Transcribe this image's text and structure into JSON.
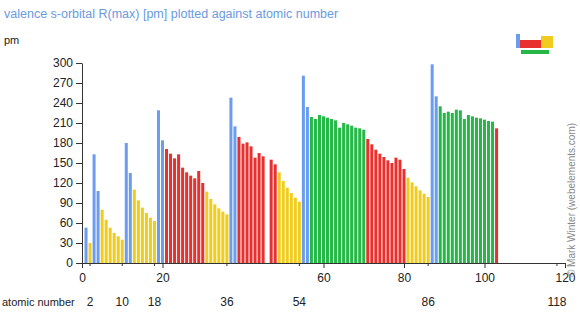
{
  "chart_data": {
    "type": "bar",
    "title": "valence s-orbital R(max) [pm] plotted against atomic number",
    "y_label": "pm",
    "x_label": "atomic number",
    "x": [
      1,
      2,
      3,
      4,
      5,
      6,
      7,
      8,
      9,
      10,
      11,
      12,
      13,
      14,
      15,
      16,
      17,
      18,
      19,
      20,
      21,
      22,
      23,
      24,
      25,
      26,
      27,
      28,
      29,
      30,
      31,
      32,
      33,
      34,
      35,
      36,
      37,
      38,
      39,
      40,
      41,
      42,
      43,
      44,
      45,
      46,
      47,
      48,
      49,
      50,
      51,
      52,
      53,
      54,
      55,
      56,
      57,
      58,
      59,
      60,
      61,
      62,
      63,
      64,
      65,
      66,
      67,
      68,
      69,
      70,
      71,
      72,
      73,
      74,
      75,
      76,
      77,
      78,
      79,
      80,
      81,
      82,
      83,
      84,
      85,
      86,
      87,
      88,
      89,
      90,
      91,
      92,
      93,
      94,
      95,
      96,
      97,
      98,
      99,
      100,
      101,
      102,
      103
    ],
    "values": [
      53,
      30,
      163,
      108,
      80,
      65,
      53,
      45,
      40,
      35,
      180,
      135,
      110,
      94,
      83,
      75,
      68,
      63,
      229,
      184,
      171,
      164,
      157,
      163,
      143,
      136,
      131,
      127,
      138,
      120,
      107,
      96,
      88,
      82,
      77,
      73,
      248,
      205,
      189,
      179,
      181,
      175,
      158,
      165,
      160,
      null,
      155,
      148,
      136,
      123,
      113,
      105,
      98,
      92,
      281,
      234,
      219,
      216,
      222,
      220,
      218,
      216,
      214,
      203,
      210,
      208,
      206,
      203,
      202,
      200,
      186,
      178,
      170,
      164,
      159,
      154,
      150,
      158,
      155,
      141,
      128,
      121,
      115,
      109,
      104,
      99,
      298,
      250,
      235,
      225,
      227,
      225,
      230,
      229,
      216,
      222,
      220,
      218,
      217,
      215,
      213,
      212,
      202
    ],
    "colors": [
      "#6b9cf0",
      "#f0cc1f",
      "#6b9cf0",
      "#6b9cf0",
      "#f0cc1f",
      "#f0cc1f",
      "#f0cc1f",
      "#f0cc1f",
      "#f0cc1f",
      "#f0cc1f",
      "#6b9cf0",
      "#6b9cf0",
      "#f0cc1f",
      "#f0cc1f",
      "#f0cc1f",
      "#f0cc1f",
      "#f0cc1f",
      "#f0cc1f",
      "#6b9cf0",
      "#6b9cf0",
      "#e8312e",
      "#e8312e",
      "#e8312e",
      "#e8312e",
      "#e8312e",
      "#e8312e",
      "#e8312e",
      "#e8312e",
      "#e8312e",
      "#e8312e",
      "#f0cc1f",
      "#f0cc1f",
      "#f0cc1f",
      "#f0cc1f",
      "#f0cc1f",
      "#f0cc1f",
      "#6b9cf0",
      "#6b9cf0",
      "#e8312e",
      "#e8312e",
      "#e8312e",
      "#e8312e",
      "#e8312e",
      "#e8312e",
      "#e8312e",
      "#e8312e",
      "#e8312e",
      "#e8312e",
      "#f0cc1f",
      "#f0cc1f",
      "#f0cc1f",
      "#f0cc1f",
      "#f0cc1f",
      "#f0cc1f",
      "#6b9cf0",
      "#6b9cf0",
      "#26b847",
      "#26b847",
      "#26b847",
      "#26b847",
      "#26b847",
      "#26b847",
      "#26b847",
      "#26b847",
      "#26b847",
      "#26b847",
      "#26b847",
      "#26b847",
      "#26b847",
      "#26b847",
      "#e8312e",
      "#e8312e",
      "#e8312e",
      "#e8312e",
      "#e8312e",
      "#e8312e",
      "#e8312e",
      "#e8312e",
      "#e8312e",
      "#e8312e",
      "#f0cc1f",
      "#f0cc1f",
      "#f0cc1f",
      "#f0cc1f",
      "#f0cc1f",
      "#f0cc1f",
      "#6b9cf0",
      "#6b9cf0",
      "#26b847",
      "#26b847",
      "#26b847",
      "#26b847",
      "#26b847",
      "#26b847",
      "#26b847",
      "#26b847",
      "#26b847",
      "#26b847",
      "#26b847",
      "#26b847",
      "#26b847",
      "#26b847",
      "#e8312e"
    ],
    "xlim": [
      0,
      120
    ],
    "xticks": [
      0,
      20,
      60,
      80,
      100,
      120
    ],
    "ylim": [
      0,
      300
    ],
    "yticks": [
      0,
      30,
      60,
      90,
      120,
      150,
      180,
      210,
      240,
      270,
      300
    ],
    "grid": false,
    "annotations": [
      {
        "x": 2,
        "text": "2"
      },
      {
        "x": 10,
        "text": "10"
      },
      {
        "x": 18,
        "text": "18"
      },
      {
        "x": 36,
        "text": "36"
      },
      {
        "x": 54,
        "text": "54"
      },
      {
        "x": 86,
        "text": "86"
      },
      {
        "x": 118,
        "text": "118"
      }
    ],
    "credit": "© Mark Winter (webelements.com)"
  }
}
